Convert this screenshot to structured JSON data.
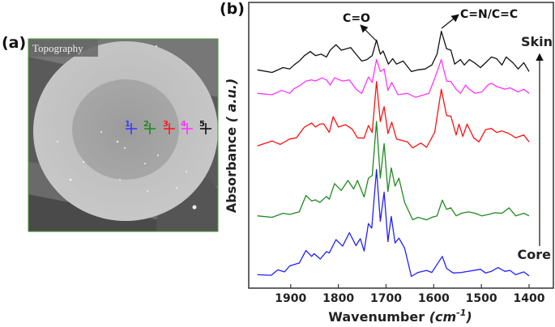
{
  "panel_a": {
    "label": "(a)",
    "image_title": "Topography",
    "markers": [
      {
        "label": "1",
        "color": "#3a3aff"
      },
      {
        "label": "2",
        "color": "#1f8a1f"
      },
      {
        "label": "3",
        "color": "#ff1a1a"
      },
      {
        "label": "4",
        "color": "#ff33ff"
      },
      {
        "label": "5",
        "color": "#111111"
      }
    ]
  },
  "chart_data": {
    "panel_label": "(b)",
    "type": "line",
    "xlabel": "Wavenumber",
    "xlabel_unit_base": "cm",
    "xlabel_unit_exp": "-1",
    "ylabel": "Absorbance",
    "ylabel_unit": "a.u.",
    "xlim": [
      1988,
      1349
    ],
    "x_reversed": true,
    "ylim": [
      0,
      100
    ],
    "xticks": [
      1900,
      1800,
      1700,
      1600,
      1500,
      1400
    ],
    "grid": false,
    "annotations": [
      {
        "text": "C=O",
        "x": 1724
      },
      {
        "text": "C=N/C=C",
        "x": 1584
      }
    ],
    "direction_labels": {
      "top": "Skin",
      "bottom": "Core"
    },
    "series": [
      {
        "marker": "1",
        "color": "#2020ff",
        "points": [
          [
            1970,
            4.7
          ],
          [
            1941,
            4.5
          ],
          [
            1927,
            6.4
          ],
          [
            1913,
            5.7
          ],
          [
            1902,
            7.8
          ],
          [
            1882,
            8.8
          ],
          [
            1868,
            13.2
          ],
          [
            1856,
            11.1
          ],
          [
            1851,
            12.1
          ],
          [
            1838,
            10.2
          ],
          [
            1825,
            12.8
          ],
          [
            1819,
            12.3
          ],
          [
            1805,
            17.0
          ],
          [
            1791,
            14.7
          ],
          [
            1777,
            19.4
          ],
          [
            1763,
            14.9
          ],
          [
            1754,
            17.3
          ],
          [
            1746,
            13.0
          ],
          [
            1737,
            22.6
          ],
          [
            1730,
            21.0
          ],
          [
            1720,
            41.5
          ],
          [
            1712,
            23.4
          ],
          [
            1704,
            33.6
          ],
          [
            1696,
            16.3
          ],
          [
            1689,
            25.1
          ],
          [
            1681,
            15.8
          ],
          [
            1673,
            17.5
          ],
          [
            1661,
            14.0
          ],
          [
            1647,
            4.1
          ],
          [
            1633,
            5.5
          ],
          [
            1615,
            6.2
          ],
          [
            1604,
            5.5
          ],
          [
            1593,
            8.3
          ],
          [
            1582,
            11.1
          ],
          [
            1573,
            6.9
          ],
          [
            1559,
            5.3
          ],
          [
            1542,
            5.5
          ],
          [
            1502,
            6.6
          ],
          [
            1491,
            5.3
          ],
          [
            1479,
            5.9
          ],
          [
            1465,
            7.2
          ],
          [
            1451,
            5.9
          ],
          [
            1440,
            6.2
          ],
          [
            1428,
            4.7
          ],
          [
            1411,
            5.7
          ],
          [
            1400,
            4.3
          ]
        ]
      },
      {
        "marker": "2",
        "color": "#1f8a1f",
        "points": [
          [
            1970,
            25.3
          ],
          [
            1939,
            24.8
          ],
          [
            1916,
            26.2
          ],
          [
            1902,
            25.8
          ],
          [
            1882,
            26.7
          ],
          [
            1868,
            32.4
          ],
          [
            1856,
            30.5
          ],
          [
            1848,
            30.9
          ],
          [
            1839,
            30.0
          ],
          [
            1825,
            32.1
          ],
          [
            1819,
            31.1
          ],
          [
            1808,
            36.6
          ],
          [
            1794,
            34.2
          ],
          [
            1780,
            37.7
          ],
          [
            1768,
            34.7
          ],
          [
            1760,
            37.7
          ],
          [
            1746,
            31.9
          ],
          [
            1737,
            38.5
          ],
          [
            1729,
            39.4
          ],
          [
            1720,
            58.3
          ],
          [
            1712,
            38.5
          ],
          [
            1704,
            50.6
          ],
          [
            1696,
            33.8
          ],
          [
            1689,
            42.1
          ],
          [
            1681,
            35.7
          ],
          [
            1673,
            38.5
          ],
          [
            1661,
            30.0
          ],
          [
            1644,
            23.9
          ],
          [
            1633,
            24.8
          ],
          [
            1615,
            23.9
          ],
          [
            1604,
            24.8
          ],
          [
            1593,
            25.3
          ],
          [
            1582,
            30.8
          ],
          [
            1573,
            27.6
          ],
          [
            1564,
            28.1
          ],
          [
            1553,
            25.3
          ],
          [
            1542,
            26.2
          ],
          [
            1527,
            26.7
          ],
          [
            1513,
            26.2
          ],
          [
            1499,
            25.3
          ],
          [
            1485,
            25.8
          ],
          [
            1471,
            26.4
          ],
          [
            1457,
            26.2
          ],
          [
            1442,
            28.1
          ],
          [
            1428,
            25.3
          ],
          [
            1411,
            26.2
          ],
          [
            1400,
            25.3
          ]
        ]
      },
      {
        "marker": "3",
        "color": "#ff1010",
        "points": [
          [
            1970,
            49.8
          ],
          [
            1939,
            51.5
          ],
          [
            1922,
            50.3
          ],
          [
            1902,
            52.2
          ],
          [
            1888,
            52.6
          ],
          [
            1871,
            56.4
          ],
          [
            1856,
            57.8
          ],
          [
            1848,
            56.4
          ],
          [
            1839,
            57.4
          ],
          [
            1831,
            57.5
          ],
          [
            1819,
            54.5
          ],
          [
            1811,
            60.0
          ],
          [
            1800,
            56.4
          ],
          [
            1785,
            57.2
          ],
          [
            1771,
            55.7
          ],
          [
            1760,
            52.6
          ],
          [
            1746,
            52.5
          ],
          [
            1737,
            56.9
          ],
          [
            1729,
            54.5
          ],
          [
            1720,
            72.3
          ],
          [
            1712,
            58.3
          ],
          [
            1704,
            63.5
          ],
          [
            1696,
            54.1
          ],
          [
            1688,
            58.1
          ],
          [
            1678,
            52.2
          ],
          [
            1655,
            51.2
          ],
          [
            1644,
            49.1
          ],
          [
            1627,
            50.8
          ],
          [
            1615,
            49.3
          ],
          [
            1598,
            54.5
          ],
          [
            1584,
            69.6
          ],
          [
            1573,
            60.4
          ],
          [
            1564,
            60.2
          ],
          [
            1553,
            53.6
          ],
          [
            1547,
            57.4
          ],
          [
            1539,
            53.1
          ],
          [
            1530,
            57.4
          ],
          [
            1516,
            52.6
          ],
          [
            1505,
            51.2
          ],
          [
            1491,
            55.5
          ],
          [
            1479,
            55.9
          ],
          [
            1468,
            54.5
          ],
          [
            1457,
            55.0
          ],
          [
            1442,
            54.1
          ],
          [
            1428,
            52.6
          ],
          [
            1411,
            53.6
          ],
          [
            1400,
            51.2
          ]
        ]
      },
      {
        "marker": "4",
        "color": "#ff33ff",
        "points": [
          [
            1970,
            68.2
          ],
          [
            1939,
            67.7
          ],
          [
            1919,
            69.2
          ],
          [
            1902,
            68.2
          ],
          [
            1893,
            69.8
          ],
          [
            1882,
            70.8
          ],
          [
            1876,
            71.5
          ],
          [
            1868,
            72.5
          ],
          [
            1856,
            72.9
          ],
          [
            1848,
            72.5
          ],
          [
            1834,
            73.6
          ],
          [
            1825,
            72.9
          ],
          [
            1817,
            71.1
          ],
          [
            1808,
            73.6
          ],
          [
            1791,
            72.5
          ],
          [
            1777,
            72.9
          ],
          [
            1763,
            69.6
          ],
          [
            1751,
            68.2
          ],
          [
            1737,
            73.9
          ],
          [
            1729,
            72.0
          ],
          [
            1720,
            80.0
          ],
          [
            1712,
            75.8
          ],
          [
            1704,
            76.7
          ],
          [
            1696,
            69.2
          ],
          [
            1688,
            72.0
          ],
          [
            1675,
            67.7
          ],
          [
            1655,
            68.2
          ],
          [
            1638,
            66.8
          ],
          [
            1610,
            68.2
          ],
          [
            1598,
            73.4
          ],
          [
            1584,
            80.0
          ],
          [
            1573,
            72.5
          ],
          [
            1564,
            72.3
          ],
          [
            1553,
            69.6
          ],
          [
            1544,
            68.2
          ],
          [
            1533,
            71.1
          ],
          [
            1525,
            69.6
          ],
          [
            1513,
            68.2
          ],
          [
            1499,
            68.7
          ],
          [
            1485,
            71.3
          ],
          [
            1479,
            71.7
          ],
          [
            1468,
            70.6
          ],
          [
            1451,
            69.6
          ],
          [
            1440,
            70.1
          ],
          [
            1423,
            68.7
          ],
          [
            1411,
            69.6
          ],
          [
            1400,
            68.2
          ]
        ]
      },
      {
        "marker": "5",
        "color": "#111111",
        "points": [
          [
            1970,
            76.4
          ],
          [
            1939,
            75.5
          ],
          [
            1916,
            77.2
          ],
          [
            1902,
            76.7
          ],
          [
            1893,
            78.1
          ],
          [
            1882,
            79.5
          ],
          [
            1871,
            81.4
          ],
          [
            1859,
            82.8
          ],
          [
            1848,
            81.4
          ],
          [
            1836,
            81.9
          ],
          [
            1825,
            80.9
          ],
          [
            1817,
            83.3
          ],
          [
            1805,
            85.2
          ],
          [
            1794,
            83.3
          ],
          [
            1783,
            83.8
          ],
          [
            1774,
            84.2
          ],
          [
            1763,
            81.9
          ],
          [
            1751,
            79.5
          ],
          [
            1740,
            80.0
          ],
          [
            1729,
            81.4
          ],
          [
            1720,
            86.8
          ],
          [
            1712,
            81.9
          ],
          [
            1706,
            83.0
          ],
          [
            1695,
            78.4
          ],
          [
            1686,
            80.3
          ],
          [
            1678,
            78.4
          ],
          [
            1664,
            79.5
          ],
          [
            1647,
            75.8
          ],
          [
            1633,
            76.4
          ],
          [
            1618,
            76.7
          ],
          [
            1604,
            78.1
          ],
          [
            1593,
            81.9
          ],
          [
            1584,
            89.9
          ],
          [
            1573,
            83.8
          ],
          [
            1564,
            83.3
          ],
          [
            1556,
            78.4
          ],
          [
            1544,
            80.0
          ],
          [
            1536,
            78.1
          ],
          [
            1525,
            80.0
          ],
          [
            1513,
            78.7
          ],
          [
            1502,
            77.2
          ],
          [
            1491,
            78.9
          ],
          [
            1479,
            80.9
          ],
          [
            1468,
            80.3
          ],
          [
            1457,
            78.1
          ],
          [
            1448,
            80.9
          ],
          [
            1434,
            78.9
          ],
          [
            1423,
            76.7
          ],
          [
            1411,
            78.9
          ],
          [
            1400,
            75.8
          ]
        ]
      }
    ]
  }
}
